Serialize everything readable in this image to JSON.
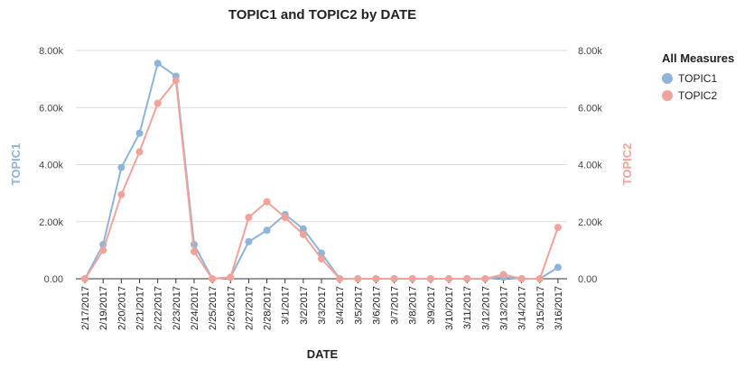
{
  "chart_data": {
    "type": "line",
    "title": "TOPIC1 and TOPIC2 by DATE",
    "xlabel": "DATE",
    "ylabel_left": "TOPIC1",
    "ylabel_right": "TOPIC2",
    "ylim": [
      0,
      8000
    ],
    "yticks": [
      0,
      2000,
      4000,
      6000,
      8000
    ],
    "ytick_labels": [
      "0.00",
      "2.00k",
      "4.00k",
      "6.00k",
      "8.00k"
    ],
    "grid": true,
    "legend_title": "All Measures",
    "legend_position": "top-right",
    "categories": [
      "2/17/2017",
      "2/19/2017",
      "2/20/2017",
      "2/21/2017",
      "2/22/2017",
      "2/23/2017",
      "2/24/2017",
      "2/25/2017",
      "2/26/2017",
      "2/27/2017",
      "2/28/2017",
      "3/1/2017",
      "3/2/2017",
      "3/3/2017",
      "3/4/2017",
      "3/5/2017",
      "3/6/2017",
      "3/7/2017",
      "3/8/2017",
      "3/9/2017",
      "3/10/2017",
      "3/11/2017",
      "3/12/2017",
      "3/13/2017",
      "3/14/2017",
      "3/15/2017",
      "3/16/2017"
    ],
    "series": [
      {
        "name": "TOPIC1",
        "color": "#8fb4d9",
        "axis": "left",
        "values": [
          0,
          1200,
          3900,
          5100,
          7550,
          7100,
          1200,
          0,
          50,
          1300,
          1700,
          2250,
          1750,
          900,
          0,
          0,
          0,
          0,
          0,
          0,
          0,
          0,
          0,
          50,
          0,
          0,
          400
        ]
      },
      {
        "name": "TOPIC2",
        "color": "#f0a39b",
        "axis": "right",
        "values": [
          0,
          1000,
          2950,
          4450,
          6150,
          6950,
          950,
          0,
          50,
          2150,
          2700,
          2150,
          1550,
          700,
          0,
          0,
          0,
          0,
          0,
          0,
          0,
          0,
          0,
          150,
          0,
          0,
          1800
        ]
      }
    ]
  }
}
